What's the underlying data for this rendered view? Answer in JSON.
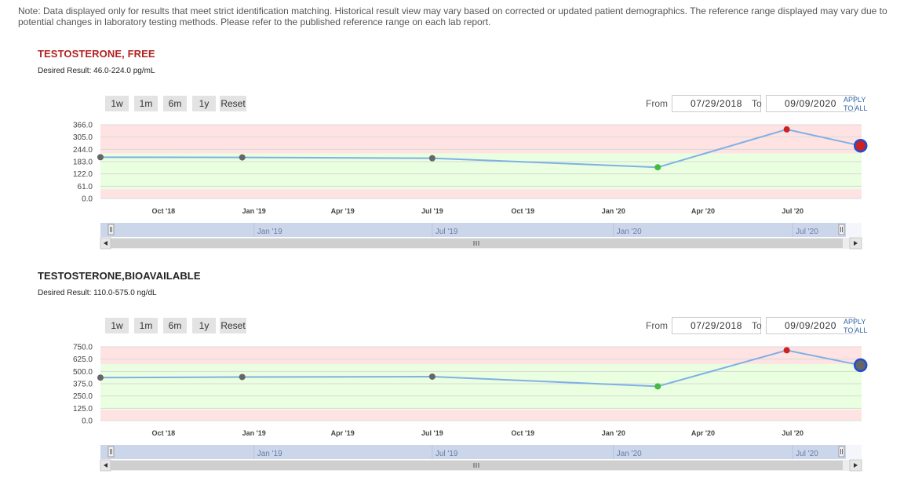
{
  "note": "Note: Data displayed only for results that meet strict identification matching. Historical result view may vary based on corrected or updated patient demographics. The reference range displayed may vary due to potential changes in laboratory testing methods. Please refer to the published reference range on each lab report.",
  "zoom_buttons": [
    "1w",
    "1m",
    "6m",
    "1y",
    "Reset"
  ],
  "from_label": "From",
  "to_label": "To",
  "apply_line1": "APPLY",
  "apply_line2": "TO ALL",
  "panels": [
    {
      "title": "TESTOSTERONE, FREE",
      "title_color": "#b22222",
      "desired": "Desired Result: 46.0-224.0 pg/mL",
      "from_date": "07/29/2018",
      "to_date": "09/09/2020"
    },
    {
      "title": "TESTOSTERONE,BIOAVAILABLE",
      "title_color": "#222222",
      "desired": "Desired Result: 110.0-575.0 ng/dL",
      "from_date": "07/29/2018",
      "to_date": "09/09/2020"
    }
  ],
  "colors": {
    "line": "#7fb0e6",
    "normal_band": "#eaffe0",
    "abnormal_band": "#ffe3e3",
    "point_normal": "#666666",
    "point_low": "#44bb44",
    "point_high": "#cc2222",
    "selected_ring": "#1f4fd1",
    "navigator": "#ccd6eb"
  },
  "chart_data": [
    {
      "type": "line",
      "x_range": [
        "2018-07-29",
        "2020-09-09"
      ],
      "x_ticks": [
        "Oct '18",
        "Jan '19",
        "Apr '19",
        "Jul '19",
        "Oct '19",
        "Jan '20",
        "Apr '20",
        "Jul '20"
      ],
      "ylim": [
        0,
        366
      ],
      "y_ticks": [
        "366.0",
        "305.0",
        "244.0",
        "183.0",
        "122.0",
        "61.0",
        "0.0"
      ],
      "normal_range": [
        46,
        224
      ],
      "navigator_labels": [
        "Jan '19",
        "Jul '19",
        "Jan '20",
        "Jul '20"
      ],
      "points": [
        {
          "x": "2018-07-29",
          "y": 205,
          "status": "normal"
        },
        {
          "x": "2018-12-20",
          "y": 204,
          "status": "normal"
        },
        {
          "x": "2019-07-01",
          "y": 200,
          "status": "normal"
        },
        {
          "x": "2020-02-15",
          "y": 155,
          "status": "low"
        },
        {
          "x": "2020-06-25",
          "y": 343,
          "status": "high"
        },
        {
          "x": "2020-09-08",
          "y": 262,
          "status": "high",
          "selected": true
        }
      ]
    },
    {
      "type": "line",
      "x_range": [
        "2018-07-29",
        "2020-09-09"
      ],
      "x_ticks": [
        "Oct '18",
        "Jan '19",
        "Apr '19",
        "Jul '19",
        "Oct '19",
        "Jan '20",
        "Apr '20",
        "Jul '20"
      ],
      "ylim": [
        0,
        750
      ],
      "y_ticks": [
        "750.0",
        "625.0",
        "500.0",
        "375.0",
        "250.0",
        "125.0",
        "0.0"
      ],
      "normal_range": [
        110,
        575
      ],
      "navigator_labels": [
        "Jan '19",
        "Jul '19",
        "Jan '20",
        "Jul '20"
      ],
      "points": [
        {
          "x": "2018-07-29",
          "y": 437,
          "status": "normal"
        },
        {
          "x": "2018-12-20",
          "y": 443,
          "status": "normal"
        },
        {
          "x": "2019-07-01",
          "y": 447,
          "status": "normal"
        },
        {
          "x": "2020-02-15",
          "y": 348,
          "status": "low"
        },
        {
          "x": "2020-06-25",
          "y": 715,
          "status": "high"
        },
        {
          "x": "2020-09-08",
          "y": 563,
          "status": "normal",
          "selected": true
        }
      ]
    }
  ]
}
